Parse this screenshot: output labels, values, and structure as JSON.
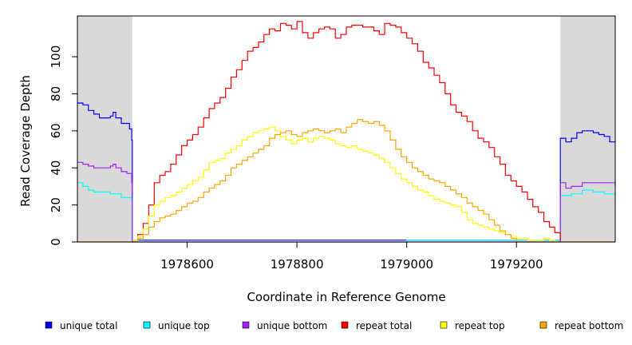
{
  "chart_data": {
    "type": "line",
    "title": "",
    "xlabel": "Coordinate in Reference Genome",
    "ylabel": "Read Coverage Depth",
    "xlim": [
      1978400,
      1979380
    ],
    "ylim": [
      0,
      122
    ],
    "x_ticks": [
      1978600,
      1978800,
      1979000,
      1979200
    ],
    "y_ticks": [
      0,
      20,
      40,
      60,
      80,
      100
    ],
    "grid": false,
    "legend_position": "bottom",
    "shaded_regions": [
      {
        "x_start": 1978400,
        "x_end": 1978500,
        "color": "#d9d9d9"
      },
      {
        "x_start": 1979280,
        "x_end": 1979380,
        "color": "#d9d9d9"
      }
    ],
    "series": [
      {
        "name": "unique total",
        "color": "#0000ff",
        "points": [
          [
            1978400,
            75
          ],
          [
            1978410,
            74
          ],
          [
            1978420,
            71
          ],
          [
            1978430,
            69
          ],
          [
            1978440,
            67
          ],
          [
            1978450,
            67
          ],
          [
            1978460,
            68
          ],
          [
            1978465,
            70
          ],
          [
            1978470,
            67
          ],
          [
            1978480,
            64
          ],
          [
            1978490,
            64
          ],
          [
            1978495,
            61
          ],
          [
            1978499,
            55
          ],
          [
            1978500,
            1
          ],
          [
            1978600,
            1
          ],
          [
            1978800,
            1
          ],
          [
            1978999,
            1
          ],
          [
            1979000,
            1
          ],
          [
            1979100,
            1
          ],
          [
            1979279,
            1
          ],
          [
            1979280,
            56
          ],
          [
            1979290,
            54
          ],
          [
            1979300,
            56
          ],
          [
            1979310,
            59
          ],
          [
            1979320,
            60
          ],
          [
            1979330,
            60
          ],
          [
            1979340,
            59
          ],
          [
            1979350,
            58
          ],
          [
            1979360,
            57
          ],
          [
            1979370,
            54
          ],
          [
            1979380,
            55
          ]
        ]
      },
      {
        "name": "unique top",
        "color": "#00ffff",
        "points": [
          [
            1978400,
            32
          ],
          [
            1978410,
            30
          ],
          [
            1978420,
            28
          ],
          [
            1978430,
            27
          ],
          [
            1978440,
            27
          ],
          [
            1978450,
            27
          ],
          [
            1978460,
            26
          ],
          [
            1978470,
            26
          ],
          [
            1978480,
            24
          ],
          [
            1978490,
            24
          ],
          [
            1978499,
            23
          ],
          [
            1978500,
            0
          ],
          [
            1978999,
            0
          ],
          [
            1979000,
            1
          ],
          [
            1979279,
            1
          ],
          [
            1979280,
            25
          ],
          [
            1979300,
            26
          ],
          [
            1979320,
            28
          ],
          [
            1979340,
            27
          ],
          [
            1979360,
            26
          ],
          [
            1979380,
            25
          ]
        ]
      },
      {
        "name": "unique bottom",
        "color": "#a020f0",
        "points": [
          [
            1978400,
            43
          ],
          [
            1978410,
            42
          ],
          [
            1978420,
            41
          ],
          [
            1978430,
            40
          ],
          [
            1978440,
            40
          ],
          [
            1978450,
            40
          ],
          [
            1978460,
            41
          ],
          [
            1978465,
            42
          ],
          [
            1978470,
            40
          ],
          [
            1978480,
            38
          ],
          [
            1978490,
            37
          ],
          [
            1978499,
            32
          ],
          [
            1978500,
            0
          ],
          [
            1978999,
            0
          ],
          [
            1979000,
            0
          ],
          [
            1979279,
            0
          ],
          [
            1979280,
            32
          ],
          [
            1979290,
            29
          ],
          [
            1979300,
            30
          ],
          [
            1979320,
            32
          ],
          [
            1979340,
            32
          ],
          [
            1979360,
            32
          ],
          [
            1979380,
            30
          ]
        ]
      },
      {
        "name": "repeat total",
        "color": "#ff0000",
        "points": [
          [
            1978500,
            1
          ],
          [
            1978510,
            4
          ],
          [
            1978520,
            10
          ],
          [
            1978530,
            20
          ],
          [
            1978540,
            32
          ],
          [
            1978550,
            36
          ],
          [
            1978560,
            38
          ],
          [
            1978570,
            42
          ],
          [
            1978580,
            47
          ],
          [
            1978590,
            52
          ],
          [
            1978600,
            55
          ],
          [
            1978610,
            58
          ],
          [
            1978620,
            62
          ],
          [
            1978630,
            67
          ],
          [
            1978640,
            72
          ],
          [
            1978650,
            75
          ],
          [
            1978660,
            78
          ],
          [
            1978670,
            83
          ],
          [
            1978680,
            89
          ],
          [
            1978690,
            93
          ],
          [
            1978700,
            98
          ],
          [
            1978710,
            103
          ],
          [
            1978720,
            105
          ],
          [
            1978730,
            108
          ],
          [
            1978740,
            112
          ],
          [
            1978750,
            115
          ],
          [
            1978760,
            114
          ],
          [
            1978770,
            118
          ],
          [
            1978780,
            117
          ],
          [
            1978790,
            115
          ],
          [
            1978800,
            119
          ],
          [
            1978810,
            113
          ],
          [
            1978820,
            110
          ],
          [
            1978830,
            113
          ],
          [
            1978840,
            115
          ],
          [
            1978850,
            116
          ],
          [
            1978860,
            115
          ],
          [
            1978870,
            110
          ],
          [
            1978880,
            112
          ],
          [
            1978890,
            116
          ],
          [
            1978900,
            117
          ],
          [
            1978910,
            117
          ],
          [
            1978920,
            116
          ],
          [
            1978930,
            116
          ],
          [
            1978940,
            114
          ],
          [
            1978950,
            112
          ],
          [
            1978960,
            118
          ],
          [
            1978970,
            117
          ],
          [
            1978980,
            116
          ],
          [
            1978990,
            113
          ],
          [
            1979000,
            110
          ],
          [
            1979010,
            107
          ],
          [
            1979020,
            103
          ],
          [
            1979030,
            97
          ],
          [
            1979040,
            94
          ],
          [
            1979050,
            90
          ],
          [
            1979060,
            86
          ],
          [
            1979070,
            80
          ],
          [
            1979080,
            74
          ],
          [
            1979090,
            70
          ],
          [
            1979100,
            68
          ],
          [
            1979110,
            65
          ],
          [
            1979120,
            60
          ],
          [
            1979130,
            56
          ],
          [
            1979140,
            54
          ],
          [
            1979150,
            51
          ],
          [
            1979160,
            46
          ],
          [
            1979170,
            42
          ],
          [
            1979180,
            36
          ],
          [
            1979190,
            33
          ],
          [
            1979200,
            30
          ],
          [
            1979210,
            27
          ],
          [
            1979220,
            23
          ],
          [
            1979230,
            19
          ],
          [
            1979240,
            16
          ],
          [
            1979250,
            11
          ],
          [
            1979260,
            8
          ],
          [
            1979270,
            5
          ],
          [
            1979280,
            1
          ]
        ]
      },
      {
        "name": "repeat top",
        "color": "#ffff00",
        "points": [
          [
            1978500,
            1
          ],
          [
            1978510,
            3
          ],
          [
            1978520,
            7
          ],
          [
            1978530,
            14
          ],
          [
            1978540,
            20
          ],
          [
            1978550,
            22
          ],
          [
            1978560,
            24
          ],
          [
            1978570,
            25
          ],
          [
            1978580,
            27
          ],
          [
            1978590,
            29
          ],
          [
            1978600,
            31
          ],
          [
            1978610,
            33
          ],
          [
            1978620,
            35
          ],
          [
            1978630,
            39
          ],
          [
            1978640,
            43
          ],
          [
            1978650,
            44
          ],
          [
            1978660,
            45
          ],
          [
            1978670,
            48
          ],
          [
            1978680,
            50
          ],
          [
            1978690,
            52
          ],
          [
            1978700,
            55
          ],
          [
            1978710,
            57
          ],
          [
            1978720,
            59
          ],
          [
            1978730,
            60
          ],
          [
            1978740,
            61
          ],
          [
            1978750,
            62
          ],
          [
            1978760,
            60
          ],
          [
            1978770,
            57
          ],
          [
            1978780,
            55
          ],
          [
            1978790,
            53
          ],
          [
            1978800,
            55
          ],
          [
            1978810,
            56
          ],
          [
            1978820,
            54
          ],
          [
            1978830,
            56
          ],
          [
            1978840,
            57
          ],
          [
            1978850,
            56
          ],
          [
            1978860,
            55
          ],
          [
            1978870,
            53
          ],
          [
            1978880,
            52
          ],
          [
            1978890,
            51
          ],
          [
            1978900,
            52
          ],
          [
            1978910,
            50
          ],
          [
            1978920,
            49
          ],
          [
            1978930,
            48
          ],
          [
            1978940,
            47
          ],
          [
            1978950,
            45
          ],
          [
            1978960,
            43
          ],
          [
            1978970,
            40
          ],
          [
            1978980,
            37
          ],
          [
            1978990,
            34
          ],
          [
            1979000,
            32
          ],
          [
            1979010,
            30
          ],
          [
            1979020,
            28
          ],
          [
            1979030,
            27
          ],
          [
            1979040,
            25
          ],
          [
            1979050,
            23
          ],
          [
            1979060,
            22
          ],
          [
            1979070,
            21
          ],
          [
            1979080,
            20
          ],
          [
            1979090,
            19
          ],
          [
            1979100,
            16
          ],
          [
            1979110,
            12
          ],
          [
            1979120,
            10
          ],
          [
            1979130,
            9
          ],
          [
            1979140,
            8
          ],
          [
            1979150,
            7
          ],
          [
            1979160,
            6
          ],
          [
            1979170,
            5
          ],
          [
            1979180,
            4
          ],
          [
            1979190,
            3
          ],
          [
            1979200,
            2
          ],
          [
            1979220,
            1
          ],
          [
            1979240,
            1
          ],
          [
            1979250,
            2
          ],
          [
            1979260,
            1
          ],
          [
            1979270,
            0
          ],
          [
            1979280,
            0
          ]
        ]
      },
      {
        "name": "repeat bottom",
        "color": "#ffa500",
        "points": [
          [
            1978400,
            0
          ],
          [
            1978499,
            0
          ],
          [
            1978500,
            0
          ],
          [
            1978510,
            2
          ],
          [
            1978520,
            4
          ],
          [
            1978530,
            8
          ],
          [
            1978540,
            11
          ],
          [
            1978550,
            13
          ],
          [
            1978560,
            14
          ],
          [
            1978570,
            15
          ],
          [
            1978580,
            17
          ],
          [
            1978590,
            19
          ],
          [
            1978600,
            21
          ],
          [
            1978610,
            22
          ],
          [
            1978620,
            24
          ],
          [
            1978630,
            27
          ],
          [
            1978640,
            29
          ],
          [
            1978650,
            31
          ],
          [
            1978660,
            33
          ],
          [
            1978670,
            36
          ],
          [
            1978680,
            40
          ],
          [
            1978690,
            42
          ],
          [
            1978700,
            44
          ],
          [
            1978710,
            46
          ],
          [
            1978720,
            48
          ],
          [
            1978730,
            50
          ],
          [
            1978740,
            52
          ],
          [
            1978750,
            56
          ],
          [
            1978760,
            58
          ],
          [
            1978770,
            59
          ],
          [
            1978780,
            60
          ],
          [
            1978790,
            58
          ],
          [
            1978800,
            57
          ],
          [
            1978810,
            59
          ],
          [
            1978820,
            60
          ],
          [
            1978830,
            61
          ],
          [
            1978840,
            60
          ],
          [
            1978850,
            59
          ],
          [
            1978860,
            60
          ],
          [
            1978870,
            61
          ],
          [
            1978880,
            59
          ],
          [
            1978890,
            62
          ],
          [
            1978900,
            64
          ],
          [
            1978910,
            66
          ],
          [
            1978920,
            65
          ],
          [
            1978930,
            64
          ],
          [
            1978940,
            65
          ],
          [
            1978950,
            63
          ],
          [
            1978960,
            60
          ],
          [
            1978970,
            55
          ],
          [
            1978980,
            50
          ],
          [
            1978990,
            46
          ],
          [
            1979000,
            43
          ],
          [
            1979010,
            40
          ],
          [
            1979020,
            38
          ],
          [
            1979030,
            36
          ],
          [
            1979040,
            34
          ],
          [
            1979050,
            33
          ],
          [
            1979060,
            32
          ],
          [
            1979070,
            30
          ],
          [
            1979080,
            28
          ],
          [
            1979090,
            26
          ],
          [
            1979100,
            24
          ],
          [
            1979110,
            21
          ],
          [
            1979120,
            19
          ],
          [
            1979130,
            17
          ],
          [
            1979140,
            15
          ],
          [
            1979150,
            12
          ],
          [
            1979160,
            9
          ],
          [
            1979170,
            6
          ],
          [
            1979180,
            4
          ],
          [
            1979190,
            2
          ],
          [
            1979200,
            0
          ],
          [
            1979280,
            0
          ],
          [
            1979380,
            0
          ]
        ]
      }
    ]
  }
}
